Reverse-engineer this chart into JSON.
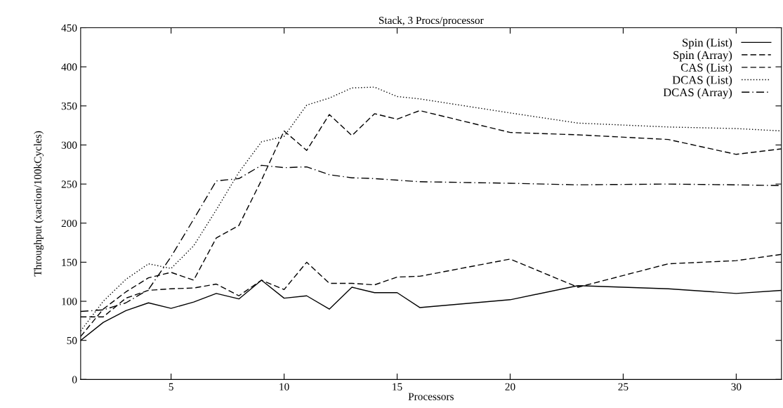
{
  "chart_data": {
    "type": "line",
    "title": "Stack, 3 Procs/processor",
    "xlabel": "Processors",
    "ylabel": "Throughput (xaction/100kCycles)",
    "x": [
      1,
      2,
      3,
      4,
      5,
      6,
      7,
      8,
      9,
      10,
      11,
      12,
      13,
      14,
      15,
      16,
      20,
      23,
      27,
      30,
      32
    ],
    "xlim": [
      1,
      32
    ],
    "xticks": [
      5,
      10,
      15,
      20,
      25,
      30
    ],
    "ylim": [
      0,
      450
    ],
    "yticks": [
      0,
      50,
      100,
      150,
      200,
      250,
      300,
      350,
      400,
      450
    ],
    "grid": false,
    "legend": "top right",
    "marker": "none",
    "series": [
      {
        "name": "Spin (List)",
        "color": "#000000",
        "line_style": "solid",
        "values": [
          50,
          73,
          88,
          98,
          91,
          99,
          110,
          103,
          127,
          104,
          107,
          90,
          118,
          111,
          111,
          92,
          102,
          120,
          116,
          110,
          114
        ]
      },
      {
        "name": "Spin (Array)",
        "color": "#000000",
        "line_style": "dashed",
        "values": [
          80,
          80,
          104,
          114,
          116,
          117,
          122,
          107,
          127,
          115,
          150,
          123,
          123,
          121,
          131,
          132,
          154,
          118,
          148,
          152,
          160
        ]
      },
      {
        "name": "CAS (List)",
        "color": "#000000",
        "line_style": "dashed",
        "values": [
          55,
          90,
          112,
          130,
          137,
          127,
          181,
          197,
          255,
          318,
          293,
          339,
          312,
          340,
          333,
          344,
          316,
          313,
          307,
          288,
          295
        ]
      },
      {
        "name": "DCAS (List)",
        "color": "#000000",
        "line_style": "dotted",
        "values": [
          62,
          100,
          128,
          148,
          142,
          171,
          217,
          265,
          304,
          311,
          351,
          360,
          373,
          374,
          362,
          359,
          341,
          328,
          323,
          321,
          318
        ]
      },
      {
        "name": "DCAS (Array)",
        "color": "#000000",
        "line_style": "dashdot",
        "values": [
          87,
          89,
          98,
          115,
          157,
          205,
          254,
          257,
          274,
          271,
          272,
          262,
          258,
          257,
          255,
          253,
          251,
          249,
          250,
          249,
          248
        ]
      }
    ]
  }
}
